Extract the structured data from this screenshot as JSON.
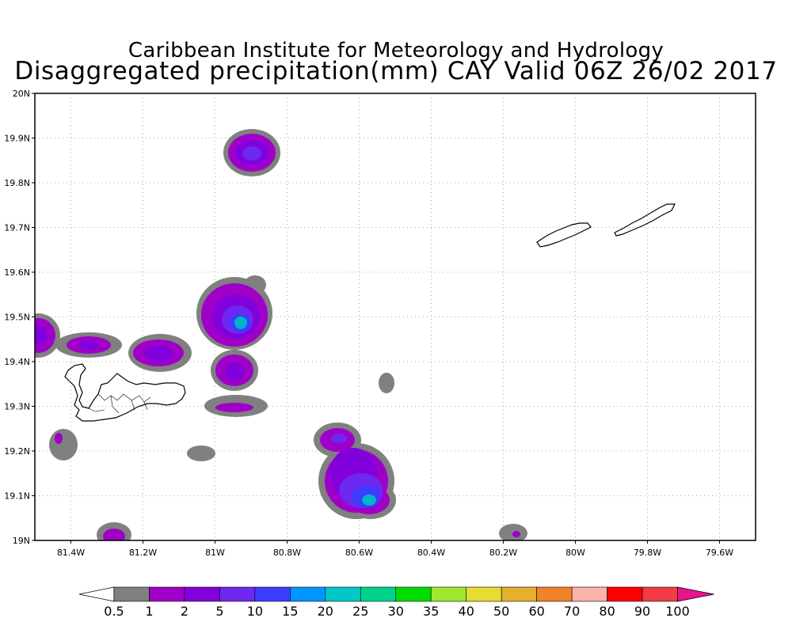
{
  "header": {
    "title": "Caribbean Institute for Meteorology and Hydrology",
    "subtitle": "Disaggregated precipitation(mm) CAY Valid 06Z 26/02 2017"
  },
  "map": {
    "lon_range": [
      -81.5,
      -79.5
    ],
    "lat_range": [
      19.0,
      20.0
    ],
    "x_ticks": [
      {
        "value": -81.4,
        "label": "81.4W"
      },
      {
        "value": -81.2,
        "label": "81.2W"
      },
      {
        "value": -81.0,
        "label": "81W"
      },
      {
        "value": -80.8,
        "label": "80.8W"
      },
      {
        "value": -80.6,
        "label": "80.6W"
      },
      {
        "value": -80.4,
        "label": "80.4W"
      },
      {
        "value": -80.2,
        "label": "80.2W"
      },
      {
        "value": -80.0,
        "label": "80W"
      },
      {
        "value": -79.8,
        "label": "79.8W"
      },
      {
        "value": -79.6,
        "label": "79.6W"
      }
    ],
    "y_ticks": [
      {
        "value": 19.0,
        "label": "19N"
      },
      {
        "value": 19.1,
        "label": "19.1N"
      },
      {
        "value": 19.2,
        "label": "19.2N"
      },
      {
        "value": 19.3,
        "label": "19.3N"
      },
      {
        "value": 19.4,
        "label": "19.4N"
      },
      {
        "value": 19.5,
        "label": "19.5N"
      },
      {
        "value": 19.6,
        "label": "19.6N"
      },
      {
        "value": 19.7,
        "label": "19.7N"
      },
      {
        "value": 19.8,
        "label": "19.8N"
      },
      {
        "value": 19.9,
        "label": "19.9N"
      },
      {
        "value": 20.0,
        "label": "20N"
      }
    ],
    "gridlines": "dotted"
  },
  "colorbar": {
    "labels": [
      "0.5",
      "1",
      "2",
      "5",
      "10",
      "15",
      "20",
      "25",
      "30",
      "35",
      "40",
      "50",
      "60",
      "70",
      "80",
      "90",
      "100"
    ],
    "colors": [
      "#ffffff",
      "#808080",
      "#9f00c8",
      "#8200dc",
      "#6e28f0",
      "#3c3cff",
      "#0096ff",
      "#00c8c8",
      "#00d28c",
      "#00dc00",
      "#a0e632",
      "#e6dc32",
      "#e6af2d",
      "#f08228",
      "#fab4aa",
      "#ff0000",
      "#f03c46",
      "#e6148c"
    ]
  }
}
